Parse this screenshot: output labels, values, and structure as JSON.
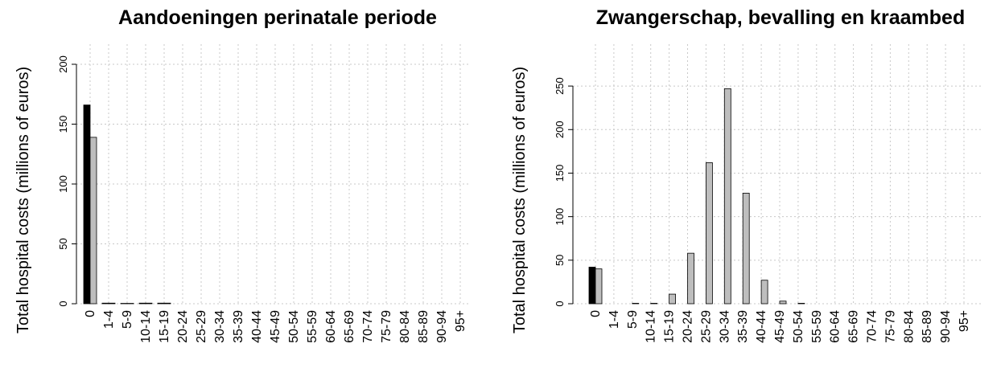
{
  "chart_data": [
    {
      "type": "bar",
      "title": "Aandoeningen perinatale periode",
      "y_label": "Total hospital costs (millions of euros)",
      "categories": [
        "0",
        "1-4",
        "5-9",
        "10-14",
        "15-19",
        "20-24",
        "25-29",
        "30-34",
        "35-39",
        "40-44",
        "45-49",
        "50-54",
        "55-59",
        "60-64",
        "65-69",
        "70-74",
        "75-79",
        "80-84",
        "85-89",
        "90-94",
        "95+"
      ],
      "series": [
        {
          "color": "#000000",
          "values": [
            166,
            0.5,
            0.3,
            0.5,
            0.5,
            0,
            0,
            0,
            0,
            0,
            0,
            0,
            0,
            0,
            0,
            0,
            0,
            0,
            0,
            0,
            0
          ]
        },
        {
          "color": "#bebebe",
          "values": [
            139,
            0.5,
            0.3,
            0.5,
            0.5,
            0,
            0,
            0,
            0,
            0,
            0,
            0,
            0,
            0,
            0,
            0,
            0,
            0,
            0,
            0,
            0
          ]
        }
      ],
      "ylim": [
        0,
        200
      ],
      "yticks": [
        0,
        50,
        100,
        150,
        200
      ],
      "grid": true
    },
    {
      "type": "bar",
      "title": "Zwangerschap, bevalling en kraambed",
      "y_label": "Total hospital costs (millions of euros)",
      "categories": [
        "0",
        "1-4",
        "5-9",
        "10-14",
        "15-19",
        "20-24",
        "25-29",
        "30-34",
        "35-39",
        "40-44",
        "45-49",
        "50-54",
        "55-59",
        "60-64",
        "65-69",
        "70-74",
        "75-79",
        "80-84",
        "85-89",
        "90-94",
        "95+"
      ],
      "series": [
        {
          "color": "#000000",
          "values": [
            42,
            0,
            0,
            0,
            0,
            0,
            0,
            0,
            0,
            0,
            0,
            0,
            0,
            0,
            0,
            0,
            0,
            0,
            0,
            0,
            0
          ]
        },
        {
          "color": "#bebebe",
          "values": [
            40,
            0,
            0.5,
            0.5,
            11,
            58,
            162,
            247,
            127,
            27,
            3,
            0.5,
            0,
            0,
            0,
            0,
            0,
            0,
            0,
            0,
            0
          ]
        }
      ],
      "ylim": [
        0,
        275
      ],
      "yticks": [
        0,
        50,
        100,
        150,
        200,
        250
      ],
      "grid": true
    }
  ]
}
